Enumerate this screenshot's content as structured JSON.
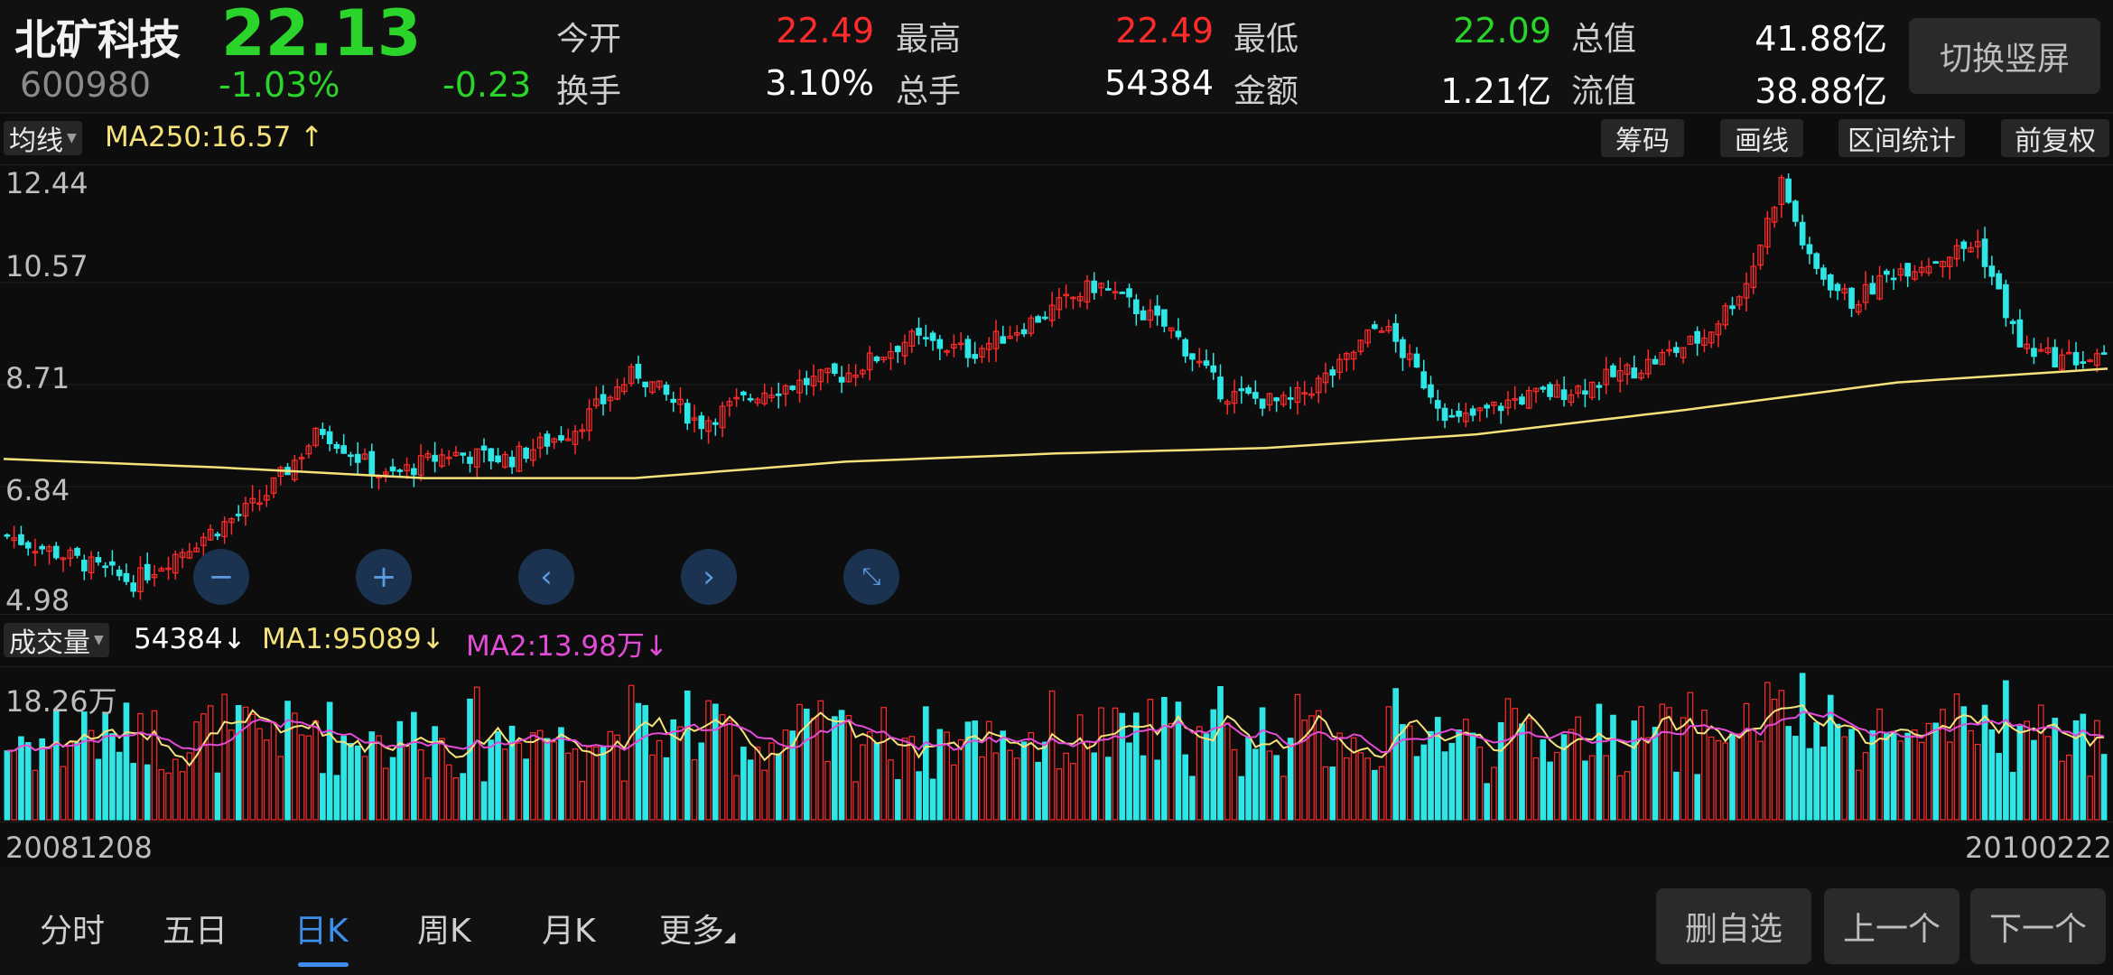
{
  "header": {
    "name": "北矿科技",
    "price": "22.13",
    "code": "600980",
    "change_pct": "-1.03%",
    "change": "-0.23",
    "stats": [
      {
        "label": "今开",
        "value": "22.49"
      },
      {
        "label": "最高",
        "value": "22.49"
      },
      {
        "label": "最低",
        "value": "22.09"
      },
      {
        "label": "总值",
        "value": "41.88亿"
      },
      {
        "label": "换手",
        "value": "3.10%"
      },
      {
        "label": "总手",
        "value": "54384"
      },
      {
        "label": "金额",
        "value": "1.21亿"
      },
      {
        "label": "流值",
        "value": "38.88亿"
      }
    ],
    "switch_label": "切换竖屏"
  },
  "toolbar": {
    "indicator": "均线",
    "ma250": "MA250:16.57",
    "ma250_arrow": "↑",
    "buttons": [
      "筹码",
      "画线",
      "区间统计",
      "前复权"
    ]
  },
  "price_axis": [
    "12.44",
    "10.57",
    "8.71",
    "6.84",
    "4.98"
  ],
  "volume_bar": {
    "indicator": "成交量",
    "volume": "54384",
    "volume_arrow": "↓",
    "ma1": "MA1:95089",
    "ma1_arrow": "↓",
    "ma2": "MA2:13.98万",
    "ma2_arrow": "↓",
    "max_label": "18.26万"
  },
  "dates": {
    "start": "20081208",
    "end": "20100222"
  },
  "tabs": [
    "分时",
    "五日",
    "日K",
    "周K",
    "月K",
    "更多"
  ],
  "active_tab": "日K",
  "bottom_buttons": [
    "删自选",
    "上一个",
    "下一个"
  ],
  "colors": {
    "up": "#ff2b2b",
    "down": "#2ad42a",
    "ma250": "#f5e27a",
    "ma1": "#f5e27a",
    "ma2": "#e24bd6",
    "vol_down": "#2ee6e6"
  },
  "chart_data": {
    "type": "candlestick",
    "ylim": [
      4.98,
      12.44
    ],
    "ma250": [
      [
        0,
        7.35
      ],
      [
        0.1,
        7.2
      ],
      [
        0.2,
        7.0
      ],
      [
        0.3,
        7.0
      ],
      [
        0.4,
        7.3
      ],
      [
        0.5,
        7.45
      ],
      [
        0.6,
        7.55
      ],
      [
        0.7,
        7.8
      ],
      [
        0.8,
        8.25
      ],
      [
        0.9,
        8.75
      ],
      [
        1.0,
        9.0
      ]
    ],
    "close_path": [
      [
        0,
        5.95
      ],
      [
        0.03,
        5.55
      ],
      [
        0.06,
        5.1
      ],
      [
        0.09,
        5.85
      ],
      [
        0.12,
        6.55
      ],
      [
        0.15,
        7.9
      ],
      [
        0.18,
        7.0
      ],
      [
        0.21,
        7.45
      ],
      [
        0.24,
        7.35
      ],
      [
        0.27,
        7.9
      ],
      [
        0.3,
        8.95
      ],
      [
        0.33,
        8.0
      ],
      [
        0.36,
        8.6
      ],
      [
        0.4,
        8.9
      ],
      [
        0.43,
        9.55
      ],
      [
        0.46,
        9.3
      ],
      [
        0.49,
        9.9
      ],
      [
        0.52,
        10.55
      ],
      [
        0.555,
        9.7
      ],
      [
        0.58,
        8.55
      ],
      [
        0.61,
        8.35
      ],
      [
        0.635,
        9.0
      ],
      [
        0.655,
        9.85
      ],
      [
        0.69,
        8.0
      ],
      [
        0.72,
        8.45
      ],
      [
        0.75,
        8.65
      ],
      [
        0.78,
        9.05
      ],
      [
        0.81,
        9.6
      ],
      [
        0.83,
        10.6
      ],
      [
        0.846,
        12.44
      ],
      [
        0.86,
        10.9
      ],
      [
        0.88,
        10.2
      ],
      [
        0.9,
        10.8
      ],
      [
        0.92,
        11.0
      ],
      [
        0.94,
        11.3
      ],
      [
        0.96,
        9.4
      ],
      [
        0.975,
        9.2
      ],
      [
        1.0,
        9.15
      ]
    ],
    "volume_ylim_label": "18.26万"
  }
}
